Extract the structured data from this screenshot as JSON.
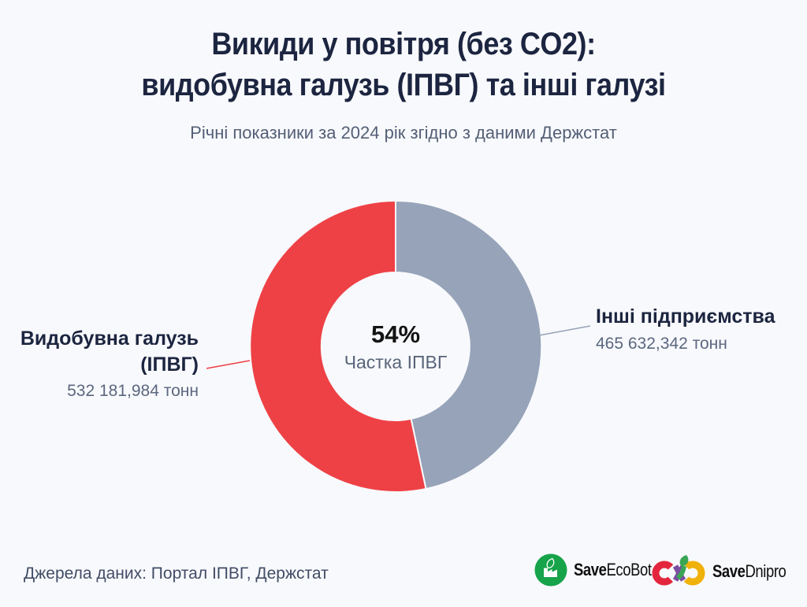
{
  "title": {
    "line1": "Викиди у повітря (без CO2):",
    "line2": "видобувна галузь (ІПВГ) та інші галузі"
  },
  "subtitle": "Річні показники за 2024 рік згідно з даними Держстат",
  "chart_data": {
    "type": "pie",
    "variant": "donut",
    "title": "Викиди у повітря (без CO2): видобувна галузь (ІПВГ) та інші галузі",
    "unit": "тонн",
    "start_angle_deg": 0,
    "direction": "clockwise",
    "center": {
      "percent": "54%",
      "label": "Частка ІПВГ"
    },
    "segments": [
      {
        "label": "Інші підприємства",
        "value": 465632.342,
        "value_text": "465 632,342 тонн",
        "color": "#96a3b8"
      },
      {
        "label": "Видобувна галузь (ІПВГ)",
        "label_lines": [
          "Видобувна галузь",
          "(ІПВГ)"
        ],
        "value": 532181.984,
        "value_text": "532 181,984 тонн",
        "color": "#ee4145"
      }
    ],
    "legend_position": "callout-labels"
  },
  "footer": {
    "sources": "Джерела даних: Портал ІПВГ, Держстат"
  },
  "logos": {
    "saveecobot": {
      "bold": "Save",
      "rest": "EcoBot",
      "icon": "factory-leaf-icon"
    },
    "savednipro": {
      "bold": "Save",
      "rest": "Dnipro",
      "icon": "flower-mark-icon"
    }
  },
  "colors": {
    "background": "#f8f9fc",
    "title": "#1c2540",
    "muted": "#535f77",
    "value_text": "#5b6780",
    "percent_text": "#131313",
    "logo_green": "#16a34a",
    "logo_red": "#e3263d",
    "logo_purple": "#7a4d9e",
    "logo_yellow": "#f0b10a",
    "leaf_green": "#3aa655"
  }
}
